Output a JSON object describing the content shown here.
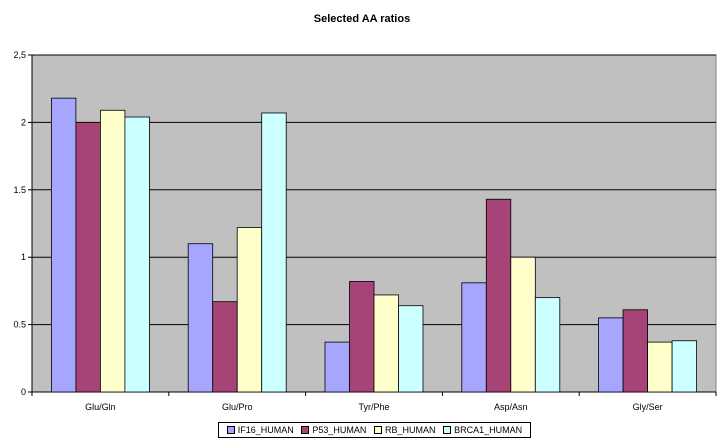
{
  "chart_data": {
    "type": "bar",
    "title": "Selected AA ratios",
    "xlabel": "",
    "ylabel": "",
    "categories": [
      "Glu/Gln",
      "Glu/Pro",
      "Tyr/Phe",
      "Asp/Asn",
      "Gly/Ser"
    ],
    "yticks": [
      "0",
      "0.5",
      "1",
      "1.5",
      "2",
      "2,5"
    ],
    "ylim": [
      0,
      2.5
    ],
    "grid": true,
    "legend_position": "bottom",
    "series": [
      {
        "name": "IF16_HUMAN",
        "color": "#a6a6ff",
        "values": [
          2.18,
          1.1,
          0.37,
          0.81,
          0.55
        ]
      },
      {
        "name": "P53_HUMAN",
        "color": "#a64477",
        "values": [
          2.0,
          0.67,
          0.82,
          1.43,
          0.61
        ]
      },
      {
        "name": "RB_HUMAN",
        "color": "#ffffcc",
        "values": [
          2.09,
          1.22,
          0.72,
          1.0,
          0.37
        ]
      },
      {
        "name": "BRCA1_HUMAN",
        "color": "#ccffff",
        "values": [
          2.04,
          2.07,
          0.64,
          0.7,
          0.38
        ]
      }
    ],
    "plot_background": "#c0c0c0"
  }
}
